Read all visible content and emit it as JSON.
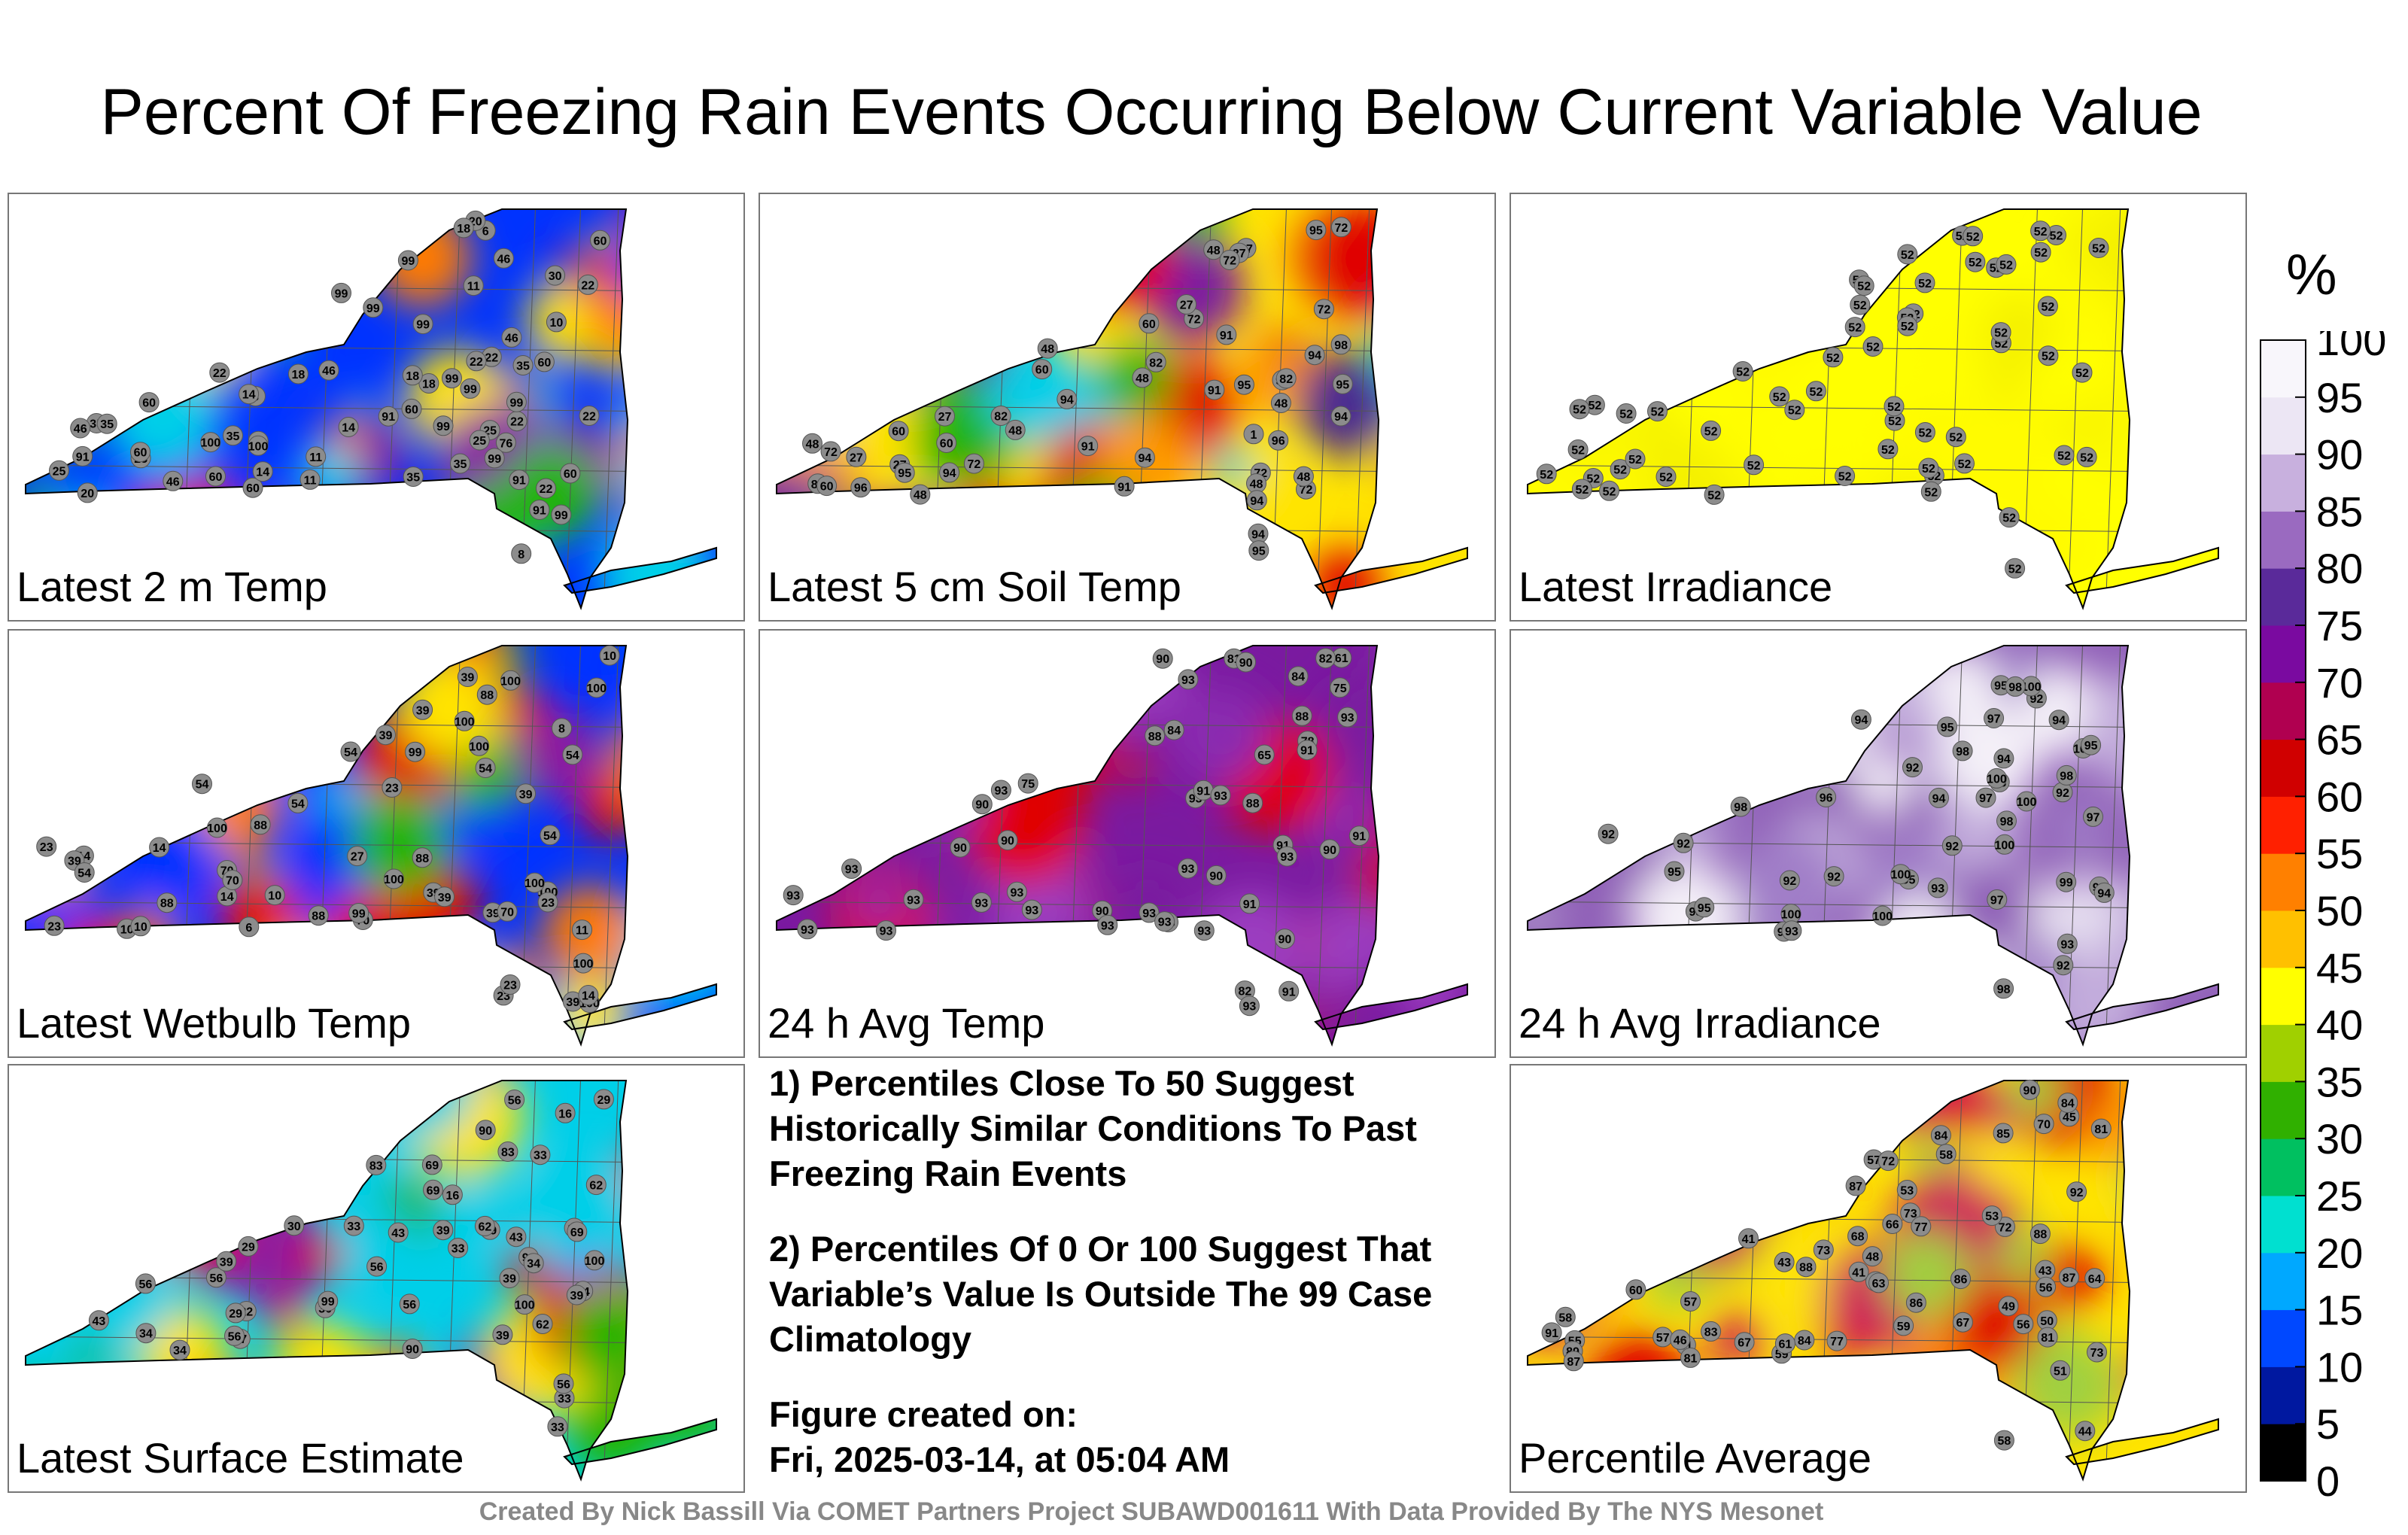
{
  "title": "Percent Of Freezing Rain Events Occurring Below Current Variable Value",
  "panels": [
    {
      "label": "Latest 2 m Temp",
      "palette": [
        "#0033ff",
        "#00cfe8",
        "#22b400",
        "#ffe400",
        "#ff7a00",
        "#e00000",
        "#8a1aa0"
      ],
      "stations": [
        "10",
        "11",
        "35",
        "8",
        "18",
        "99",
        "46",
        "6",
        "22",
        "14",
        "35",
        "20",
        "60",
        "25",
        "99",
        "22",
        "76",
        "11",
        "8",
        "60",
        "25",
        "25",
        "46",
        "22",
        "11",
        "18",
        "35",
        "25",
        "91",
        "18",
        "99",
        "60",
        "14",
        "99",
        "35",
        "60",
        "20",
        "99",
        "60",
        "30",
        "46",
        "99",
        "22",
        "100",
        "99",
        "91",
        "99",
        "35",
        "99",
        "91",
        "60",
        "22",
        "60",
        "46",
        "35",
        "18",
        "22",
        "91",
        "60",
        "22",
        "99",
        "14",
        "46",
        "100",
        "99"
      ]
    },
    {
      "label": "Latest 5 cm Soil Temp",
      "palette": [
        "#ffe400",
        "#ff9a00",
        "#e00000",
        "#7a1aa0",
        "#4b2a90",
        "#22b400",
        "#00cfe8"
      ],
      "stations": [
        "48",
        "72",
        "60",
        "48",
        "60",
        "48",
        "94",
        "72",
        "48",
        "27",
        "48",
        "27",
        "72",
        "48",
        "91",
        "72",
        "48",
        "1",
        "94",
        "95",
        "91",
        "60",
        "96",
        "82",
        "27",
        "91",
        "94",
        "82",
        "72",
        "94",
        "48",
        "27",
        "95",
        "72",
        "82",
        "27",
        "72",
        "94",
        "95",
        "48",
        "60",
        "94",
        "60",
        "95",
        "96",
        "91",
        "91",
        "98",
        "94",
        "27",
        "95",
        "82",
        "72"
      ]
    },
    {
      "label": "Latest Irradiance",
      "palette": [
        "#ffff00",
        "#fffb00",
        "#f4f000"
      ],
      "stations": [
        "52",
        "52",
        "52",
        "52",
        "52",
        "52",
        "52",
        "52",
        "52",
        "52",
        "52",
        "52",
        "52",
        "52",
        "52",
        "52",
        "52",
        "52",
        "52",
        "52",
        "52",
        "52",
        "52",
        "52",
        "52",
        "52",
        "52",
        "52",
        "52",
        "52",
        "52",
        "52",
        "52",
        "52",
        "52",
        "52",
        "52",
        "52",
        "52",
        "52",
        "52",
        "52",
        "52",
        "52",
        "52",
        "52",
        "52",
        "52",
        "52",
        "52",
        "52",
        "52",
        "52",
        "52",
        "52",
        "52",
        "52",
        "52"
      ]
    },
    {
      "label": "Latest Wetbulb Temp",
      "palette": [
        "#0033ff",
        "#00cfe8",
        "#22b400",
        "#ffe400",
        "#ff7a00",
        "#e00000",
        "#8a1aa0"
      ],
      "stations": [
        "10",
        "39",
        "11",
        "8",
        "54",
        "100",
        "39",
        "6",
        "10",
        "27",
        "70",
        "39",
        "88",
        "23",
        "100",
        "10",
        "14",
        "23",
        "39",
        "54",
        "100",
        "88",
        "70",
        "100",
        "99",
        "54",
        "39",
        "23",
        "100",
        "14",
        "54",
        "39",
        "70",
        "88",
        "23",
        "100",
        "54",
        "39",
        "14",
        "100",
        "39",
        "23",
        "88",
        "54",
        "100",
        "10",
        "70",
        "99",
        "23",
        "39",
        "100",
        "54",
        "14",
        "100",
        "88"
      ]
    },
    {
      "label": "24 h Avg Temp",
      "palette": [
        "#7a1aa0",
        "#8a2ab0",
        "#9b3ec0",
        "#e00000",
        "#c80e40"
      ],
      "stations": [
        "61",
        "81",
        "78",
        "75",
        "84",
        "78",
        "88",
        "82",
        "65",
        "82",
        "90",
        "93",
        "75",
        "84",
        "93",
        "90",
        "91",
        "93",
        "88",
        "90",
        "93",
        "91",
        "93",
        "90",
        "93",
        "93",
        "91",
        "90",
        "93",
        "93",
        "90",
        "93",
        "88",
        "93",
        "91",
        "93",
        "93",
        "90",
        "93",
        "93",
        "91",
        "93",
        "90",
        "93",
        "93",
        "93",
        "90",
        "93",
        "91"
      ]
    },
    {
      "label": "24 h Avg Irradiance",
      "palette": [
        "#9060b8",
        "#a07ec8",
        "#c2acdc",
        "#e4dcef",
        "#f4f0f8"
      ],
      "stations": [
        "92",
        "93",
        "92",
        "92",
        "92",
        "93",
        "92",
        "94",
        "92",
        "92",
        "95",
        "97",
        "98",
        "100",
        "98",
        "94",
        "97",
        "98",
        "95",
        "94",
        "96",
        "97",
        "99",
        "100",
        "98",
        "100",
        "100",
        "95",
        "100",
        "98",
        "97",
        "95",
        "94",
        "92",
        "95",
        "93",
        "100",
        "98",
        "95",
        "92",
        "98",
        "100",
        "97",
        "94",
        "100",
        "95",
        "92"
      ]
    },
    {
      "label": "Latest Surface Estimate",
      "palette": [
        "#00cfe8",
        "#22b400",
        "#ffe400",
        "#ff7a00",
        "#e00000",
        "#8a1aa0",
        "#3a8af0"
      ],
      "stations": [
        "16",
        "30",
        "17",
        "16",
        "33",
        "43",
        "56",
        "17",
        "22",
        "30",
        "29",
        "34",
        "33",
        "39",
        "56",
        "62",
        "29",
        "69",
        "33",
        "56",
        "69",
        "39",
        "43",
        "56",
        "83",
        "90",
        "29",
        "100",
        "34",
        "94",
        "39",
        "69",
        "62",
        "83",
        "56",
        "33",
        "39",
        "94",
        "100",
        "43",
        "56",
        "29",
        "90",
        "34",
        "39",
        "62",
        "99",
        "56",
        "33"
      ]
    },
    {
      "label": "Percentile Average",
      "palette": [
        "#ffe400",
        "#ff9a00",
        "#e00000",
        "#cf1a5a",
        "#a0d040",
        "#ff7a00"
      ],
      "stations": [
        "41",
        "57",
        "44",
        "54",
        "48",
        "43",
        "55",
        "59",
        "84",
        "64",
        "85",
        "73",
        "45",
        "43",
        "41",
        "53",
        "57",
        "56",
        "58",
        "72",
        "61",
        "77",
        "49",
        "51",
        "86",
        "70",
        "87",
        "58",
        "89",
        "87",
        "81",
        "73",
        "56",
        "88",
        "84",
        "50",
        "81",
        "83",
        "61",
        "88",
        "66",
        "72",
        "84",
        "67",
        "81",
        "86",
        "60",
        "77",
        "87",
        "58",
        "57",
        "67",
        "59",
        "63",
        "46",
        "53",
        "68",
        "73",
        "91",
        "90",
        "92"
      ]
    }
  ],
  "notes": [
    "1) Percentiles Close To 50 Suggest Historically Similar Conditions To Past Freezing Rain Events",
    "2) Percentiles Of 0 Or 100 Suggest That Variable’s Value Is Outside The 99 Case Climatology"
  ],
  "created_label": "Figure created on:",
  "created_value": "Fri, 2025-03-14, at 05:04 AM",
  "colorbar": {
    "unit": "%",
    "ticks": [
      "100",
      "95",
      "90",
      "85",
      "80",
      "75",
      "70",
      "65",
      "60",
      "55",
      "50",
      "45",
      "40",
      "35",
      "30",
      "25",
      "20",
      "15",
      "10",
      "5",
      "0"
    ],
    "colors": [
      "#000000",
      "#0018a0",
      "#0048ff",
      "#00a8ff",
      "#00e0d0",
      "#00c060",
      "#30b000",
      "#a0d000",
      "#ffff00",
      "#ffc000",
      "#ff8000",
      "#ff2000",
      "#d00000",
      "#b00050",
      "#7a0aa0",
      "#5a2a9a",
      "#9a6ac0",
      "#c8b0de",
      "#ece6f4",
      "#f8f6fb"
    ]
  },
  "credit": "Created By Nick Bassill Via COMET Partners Project SUBAWD001611 With Data Provided By The NYS Mesonet"
}
